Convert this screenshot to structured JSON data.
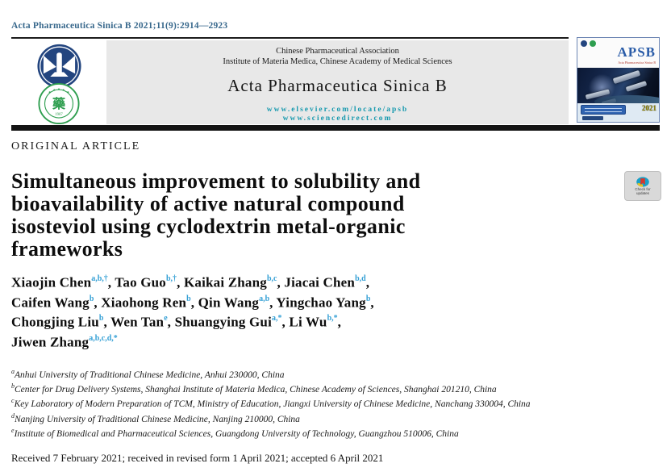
{
  "colors": {
    "citation_link": "#38688c",
    "url_teal": "#1699ae",
    "superscript_cyan": "#35a0d5",
    "header_gray": "#e8e8e8",
    "apsb_blue": "#2a5ca8",
    "cover_year_olive": "#8b8000"
  },
  "citation": "Acta Pharmaceutica Sinica B 2021;11(9):2914—2923",
  "header": {
    "association_line1": "Chinese Pharmaceutical Association",
    "association_line2": "Institute of Materia Medica, Chinese Academy of Medical Sciences",
    "journal_name": "Acta Pharmaceutica Sinica B",
    "url_elsevier": "www.elsevier.com/locate/apsb",
    "url_sciencedirect": "www.sciencedirect.com",
    "cpa_seal_char": "藥",
    "cpa_seal_year": "1907",
    "cover": {
      "abbrev": "APSB",
      "subtitle": "Acta Pharmaceutica Sinica B",
      "year": "2021"
    }
  },
  "article": {
    "section_label": "ORIGINAL ARTICLE",
    "title_lines": [
      "Simultaneous improvement to solubility and",
      "bioavailability of active natural compound",
      "isosteviol using cyclodextrin metal-organic",
      "frameworks"
    ],
    "check_badge": {
      "line1": "Check for",
      "line2": "updates"
    },
    "authors_lines": [
      [
        {
          "name": "Xiaojin Chen",
          "sup": "a,b,†",
          "sep": ", "
        },
        {
          "name": "Tao Guo",
          "sup": "b,†",
          "sep": ", "
        },
        {
          "name": "Kaikai Zhang",
          "sup": "b,c",
          "sep": ", "
        },
        {
          "name": "Jiacai Chen",
          "sup": "b,d",
          "sep": ","
        }
      ],
      [
        {
          "name": "Caifen Wang",
          "sup": "b",
          "sep": ", "
        },
        {
          "name": "Xiaohong Ren",
          "sup": "b",
          "sep": ", "
        },
        {
          "name": "Qin Wang",
          "sup": "a,b",
          "sep": ", "
        },
        {
          "name": "Yingchao Yang",
          "sup": "b",
          "sep": ","
        }
      ],
      [
        {
          "name": "Chongjing Liu",
          "sup": "b",
          "sep": ", "
        },
        {
          "name": "Wen Tan",
          "sup": "e",
          "sep": ", "
        },
        {
          "name": "Shuangying Gui",
          "sup": "a,*",
          "sep": ", "
        },
        {
          "name": "Li Wu",
          "sup": "b,*",
          "sep": ","
        }
      ],
      [
        {
          "name": "Jiwen Zhang",
          "sup": "a,b,c,d,*",
          "sep": ""
        }
      ]
    ],
    "affiliations": [
      {
        "sup": "a",
        "text": "Anhui University of Traditional Chinese Medicine, Anhui 230000, China"
      },
      {
        "sup": "b",
        "text": "Center for Drug Delivery Systems, Shanghai Institute of Materia Medica, Chinese Academy of Sciences, Shanghai 201210, China"
      },
      {
        "sup": "c",
        "text": "Key Laboratory of Modern Preparation of TCM, Ministry of Education, Jiangxi University of Chinese Medicine, Nanchang 330004, China"
      },
      {
        "sup": "d",
        "text": "Nanjing University of Traditional Chinese Medicine, Nanjing 210000, China"
      },
      {
        "sup": "e",
        "text": "Institute of Biomedical and Pharmaceutical Sciences, Guangdong University of Technology, Guangzhou 510006, China"
      }
    ],
    "received": "Received 7 February 2021; received in revised form 1 April 2021; accepted 6 April 2021"
  }
}
